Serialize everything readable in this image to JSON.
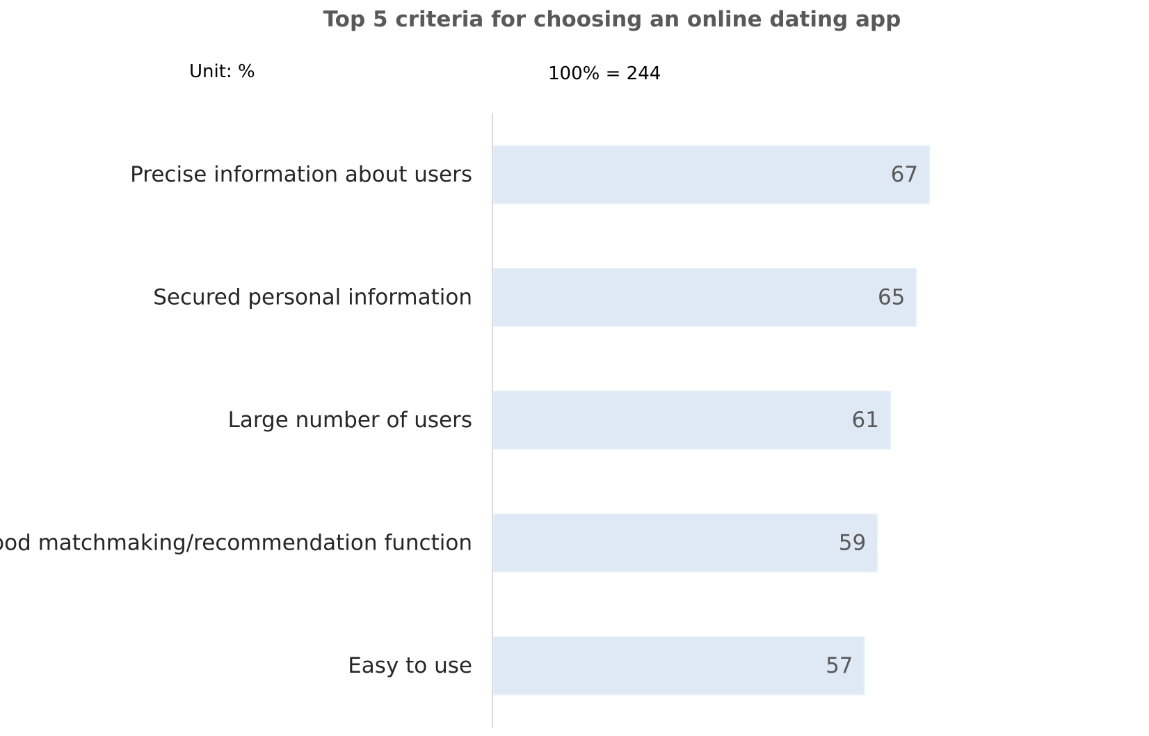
{
  "chart_data": {
    "type": "bar",
    "orientation": "horizontal",
    "title": "Top 5 criteria for choosing an online dating app",
    "unit_note": "Unit: %",
    "base_note": "100% = 244",
    "categories": [
      "Precise information about users",
      "Secured personal information",
      "Large number of users",
      "Good matchmaking/recommendation function",
      "Easy to use"
    ],
    "values": [
      67,
      65,
      61,
      59,
      57
    ],
    "xlim": [
      0,
      100
    ],
    "grid": false,
    "legend": "none",
    "colors": {
      "bar_fill": "#dfe9f5",
      "bar_edge": "#e9f0f8",
      "axis_line": "#d9d9d9",
      "category_text": "#262626",
      "value_text": "#595959",
      "title_text": "#595959"
    }
  }
}
